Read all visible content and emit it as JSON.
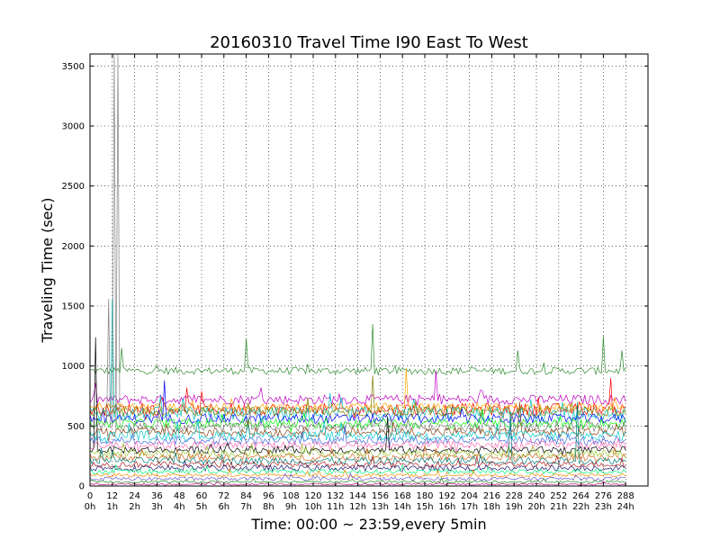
{
  "chart_data": {
    "type": "line",
    "title": "20160310 Travel Time I90 East To West",
    "xlabel": "Time: 00:00 ~ 23:59,every 5min",
    "ylabel": "Traveling Time (sec)",
    "xlim": [
      0,
      300
    ],
    "ylim": [
      0,
      3600
    ],
    "x_ticks": [
      0,
      12,
      24,
      36,
      48,
      60,
      72,
      84,
      96,
      108,
      120,
      132,
      144,
      156,
      168,
      180,
      192,
      204,
      216,
      228,
      240,
      252,
      264,
      276,
      288
    ],
    "x_tick_labels_top": [
      "0",
      "12",
      "24",
      "36",
      "48",
      "60",
      "72",
      "84",
      "96",
      "108",
      "120",
      "132",
      "144",
      "156",
      "168",
      "180",
      "192",
      "204",
      "216",
      "228",
      "240",
      "252",
      "264",
      "276",
      "288"
    ],
    "x_tick_labels_bottom": [
      "0h",
      "1h",
      "2h",
      "3h",
      "4h",
      "5h",
      "6h",
      "7h",
      "8h",
      "9h",
      "10h",
      "11h",
      "12h",
      "13h",
      "14h",
      "15h",
      "16h",
      "17h",
      "18h",
      "19h",
      "20h",
      "21h",
      "22h",
      "23h",
      "24h"
    ],
    "y_ticks": [
      0,
      500,
      1000,
      1500,
      2000,
      2500,
      3000,
      3500
    ],
    "grid": true,
    "x_points": 289,
    "series": [
      {
        "color": "#2e8b2e",
        "base": 960,
        "amp": 30,
        "spikes": [
          [
            17,
            1150
          ],
          [
            84,
            1230
          ],
          [
            152,
            1350
          ],
          [
            230,
            1130
          ],
          [
            276,
            1250
          ],
          [
            286,
            1130
          ]
        ]
      },
      {
        "color": "#bf00bf",
        "base": 720,
        "amp": 40,
        "spikes": [
          [
            92,
            820
          ],
          [
            186,
            960
          ]
        ]
      },
      {
        "color": "#ff0000",
        "base": 640,
        "amp": 50,
        "spikes": [
          [
            52,
            820
          ],
          [
            60,
            790
          ],
          [
            280,
            900
          ]
        ]
      },
      {
        "color": "#ffa500",
        "base": 660,
        "amp": 30,
        "spikes": [
          [
            170,
            980
          ]
        ]
      },
      {
        "color": "#00bfbf",
        "base": 600,
        "amp": 60,
        "spikes": [
          [
            12,
            1560
          ],
          [
            14,
            700
          ]
        ]
      },
      {
        "color": "#0000ff",
        "base": 560,
        "amp": 40,
        "spikes": [
          [
            40,
            880
          ]
        ]
      },
      {
        "color": "#808000",
        "base": 620,
        "amp": 40,
        "spikes": [
          [
            152,
            920
          ]
        ]
      },
      {
        "color": "#00ff00",
        "base": 520,
        "amp": 40,
        "spikes": []
      },
      {
        "color": "#808080",
        "base": 490,
        "amp": 40,
        "spikes": [
          [
            10,
            1560
          ],
          [
            13,
            3600
          ],
          [
            15,
            3600
          ]
        ]
      },
      {
        "color": "#8b4513",
        "base": 450,
        "amp": 40,
        "spikes": [
          [
            231,
            700
          ]
        ]
      },
      {
        "color": "#00ced1",
        "base": 420,
        "amp": 40,
        "spikes": []
      },
      {
        "color": "#4169e1",
        "base": 380,
        "amp": 35,
        "spikes": []
      },
      {
        "color": "#ff69b4",
        "base": 340,
        "amp": 35,
        "spikes": []
      },
      {
        "color": "#000000",
        "base": 300,
        "amp": 30,
        "spikes": [
          [
            3,
            1240
          ],
          [
            160,
            580
          ]
        ]
      },
      {
        "color": "#9acd32",
        "base": 270,
        "amp": 30,
        "spikes": []
      },
      {
        "color": "#d2691e",
        "base": 240,
        "amp": 30,
        "spikes": []
      },
      {
        "color": "#008080",
        "base": 210,
        "amp": 30,
        "spikes": [
          [
            226,
            620
          ],
          [
            262,
            700
          ]
        ]
      },
      {
        "color": "#b22222",
        "base": 180,
        "amp": 25,
        "spikes": []
      },
      {
        "color": "#191970",
        "base": 150,
        "amp": 25,
        "spikes": []
      },
      {
        "color": "#00ff7f",
        "base": 120,
        "amp": 20,
        "spikes": []
      },
      {
        "color": "#ff8c00",
        "base": 90,
        "amp": 15,
        "spikes": []
      },
      {
        "color": "#6a5acd",
        "base": 60,
        "amp": 15,
        "spikes": []
      },
      {
        "color": "#228b22",
        "base": 35,
        "amp": 10,
        "spikes": []
      },
      {
        "color": "#c71585",
        "base": 15,
        "amp": 8,
        "spikes": []
      }
    ]
  }
}
